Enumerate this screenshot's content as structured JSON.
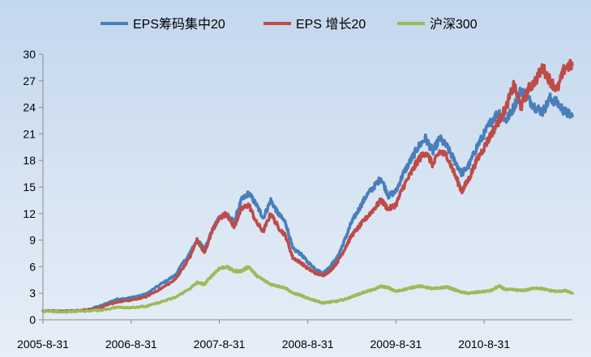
{
  "chart_data": {
    "type": "line",
    "title": "",
    "xlabel": "",
    "ylabel": "",
    "ylim": [
      0,
      30
    ],
    "yticks": [
      0,
      3,
      6,
      9,
      12,
      15,
      18,
      21,
      24,
      27,
      30
    ],
    "x_tick_labels": [
      "2005-8-31",
      "2006-8-31",
      "2007-8-31",
      "2008-8-31",
      "2009-8-31",
      "2010-8-31"
    ],
    "x_start": "2005-8-31",
    "x_end": "2011-8-31",
    "legend_position": "top",
    "grid": false,
    "series": [
      {
        "name": "EPS筹码集中20",
        "color": "#4a7ebb",
        "points": [
          [
            "2005-08-31",
            1.0
          ],
          [
            "2005-11-30",
            0.95
          ],
          [
            "2006-02-28",
            1.1
          ],
          [
            "2006-04-30",
            1.6
          ],
          [
            "2006-06-30",
            2.3
          ],
          [
            "2006-08-31",
            2.5
          ],
          [
            "2006-10-31",
            2.9
          ],
          [
            "2006-12-31",
            4.0
          ],
          [
            "2007-02-28",
            5.0
          ],
          [
            "2007-04-30",
            7.5
          ],
          [
            "2007-05-31",
            9.0
          ],
          [
            "2007-06-30",
            8.0
          ],
          [
            "2007-07-31",
            10.0
          ],
          [
            "2007-08-31",
            11.5
          ],
          [
            "2007-09-30",
            12.0
          ],
          [
            "2007-10-31",
            11.0
          ],
          [
            "2007-11-30",
            13.5
          ],
          [
            "2007-12-31",
            14.3
          ],
          [
            "2008-01-31",
            13.0
          ],
          [
            "2008-02-29",
            11.5
          ],
          [
            "2008-03-31",
            13.5
          ],
          [
            "2008-04-30",
            12.0
          ],
          [
            "2008-05-31",
            11.0
          ],
          [
            "2008-06-30",
            8.0
          ],
          [
            "2008-07-31",
            7.5
          ],
          [
            "2008-08-31",
            6.5
          ],
          [
            "2008-09-30",
            5.8
          ],
          [
            "2008-10-31",
            5.2
          ],
          [
            "2008-11-30",
            6.0
          ],
          [
            "2008-12-31",
            7.0
          ],
          [
            "2009-01-31",
            9.0
          ],
          [
            "2009-02-28",
            11.0
          ],
          [
            "2009-03-31",
            12.5
          ],
          [
            "2009-04-30",
            14.0
          ],
          [
            "2009-05-31",
            15.0
          ],
          [
            "2009-06-30",
            16.0
          ],
          [
            "2009-07-31",
            14.0
          ],
          [
            "2009-08-31",
            14.5
          ],
          [
            "2009-09-30",
            16.5
          ],
          [
            "2009-10-31",
            18.0
          ],
          [
            "2009-11-30",
            19.5
          ],
          [
            "2009-12-31",
            20.5
          ],
          [
            "2010-01-31",
            19.0
          ],
          [
            "2010-02-28",
            20.5
          ],
          [
            "2010-03-31",
            19.5
          ],
          [
            "2010-04-30",
            18.0
          ],
          [
            "2010-05-31",
            16.5
          ],
          [
            "2010-06-30",
            17.5
          ],
          [
            "2010-07-31",
            19.5
          ],
          [
            "2010-08-31",
            21.0
          ],
          [
            "2010-09-30",
            22.5
          ],
          [
            "2010-10-31",
            23.5
          ],
          [
            "2010-11-30",
            22.5
          ],
          [
            "2010-12-31",
            24.0
          ],
          [
            "2011-01-31",
            26.0
          ],
          [
            "2011-02-28",
            25.0
          ],
          [
            "2011-03-31",
            24.0
          ],
          [
            "2011-04-30",
            23.5
          ],
          [
            "2011-05-31",
            25.0
          ],
          [
            "2011-06-30",
            24.5
          ],
          [
            "2011-07-31",
            23.5
          ],
          [
            "2011-08-31",
            23.0
          ]
        ]
      },
      {
        "name": "EPS 增长20",
        "color": "#be4b48",
        "points": [
          [
            "2005-08-31",
            1.0
          ],
          [
            "2005-11-30",
            0.95
          ],
          [
            "2006-02-28",
            1.1
          ],
          [
            "2006-04-30",
            1.4
          ],
          [
            "2006-06-30",
            2.0
          ],
          [
            "2006-08-31",
            2.2
          ],
          [
            "2006-10-31",
            2.6
          ],
          [
            "2006-12-31",
            3.5
          ],
          [
            "2007-02-28",
            4.5
          ],
          [
            "2007-04-30",
            7.0
          ],
          [
            "2007-05-31",
            9.0
          ],
          [
            "2007-06-30",
            7.5
          ],
          [
            "2007-07-31",
            10.0
          ],
          [
            "2007-08-31",
            11.5
          ],
          [
            "2007-09-30",
            12.0
          ],
          [
            "2007-10-31",
            10.5
          ],
          [
            "2007-11-30",
            12.5
          ],
          [
            "2007-12-31",
            13.0
          ],
          [
            "2008-01-31",
            11.0
          ],
          [
            "2008-02-29",
            10.0
          ],
          [
            "2008-03-31",
            12.0
          ],
          [
            "2008-04-30",
            10.5
          ],
          [
            "2008-05-31",
            9.5
          ],
          [
            "2008-06-30",
            7.0
          ],
          [
            "2008-07-31",
            6.5
          ],
          [
            "2008-08-31",
            5.8
          ],
          [
            "2008-09-30",
            5.3
          ],
          [
            "2008-10-31",
            5.0
          ],
          [
            "2008-11-30",
            5.5
          ],
          [
            "2008-12-31",
            6.5
          ],
          [
            "2009-01-31",
            8.0
          ],
          [
            "2009-02-28",
            9.5
          ],
          [
            "2009-03-31",
            10.5
          ],
          [
            "2009-04-30",
            11.5
          ],
          [
            "2009-05-31",
            12.5
          ],
          [
            "2009-06-30",
            13.5
          ],
          [
            "2009-07-31",
            12.5
          ],
          [
            "2009-08-31",
            13.0
          ],
          [
            "2009-09-30",
            15.0
          ],
          [
            "2009-10-31",
            16.5
          ],
          [
            "2009-11-30",
            18.0
          ],
          [
            "2009-12-31",
            19.0
          ],
          [
            "2010-01-31",
            17.5
          ],
          [
            "2010-02-28",
            19.0
          ],
          [
            "2010-03-31",
            18.5
          ],
          [
            "2010-04-30",
            16.5
          ],
          [
            "2010-05-31",
            14.5
          ],
          [
            "2010-06-30",
            16.0
          ],
          [
            "2010-07-31",
            18.0
          ],
          [
            "2010-08-31",
            19.5
          ],
          [
            "2010-09-30",
            21.0
          ],
          [
            "2010-10-31",
            22.5
          ],
          [
            "2010-11-30",
            24.0
          ],
          [
            "2010-12-31",
            26.5
          ],
          [
            "2011-01-31",
            24.0
          ],
          [
            "2011-02-28",
            26.0
          ],
          [
            "2011-03-31",
            27.0
          ],
          [
            "2011-04-30",
            28.5
          ],
          [
            "2011-05-31",
            27.0
          ],
          [
            "2011-06-30",
            26.0
          ],
          [
            "2011-07-31",
            28.5
          ],
          [
            "2011-08-31",
            28.8
          ]
        ]
      },
      {
        "name": "沪深300",
        "color": "#9bbb59",
        "points": [
          [
            "2005-08-31",
            1.0
          ],
          [
            "2005-11-30",
            0.9
          ],
          [
            "2006-02-28",
            1.0
          ],
          [
            "2006-04-30",
            1.1
          ],
          [
            "2006-06-30",
            1.4
          ],
          [
            "2006-08-31",
            1.4
          ],
          [
            "2006-10-31",
            1.5
          ],
          [
            "2006-12-31",
            2.0
          ],
          [
            "2007-02-28",
            2.5
          ],
          [
            "2007-04-30",
            3.5
          ],
          [
            "2007-05-31",
            4.2
          ],
          [
            "2007-06-30",
            4.0
          ],
          [
            "2007-07-31",
            5.0
          ],
          [
            "2007-08-31",
            5.8
          ],
          [
            "2007-09-30",
            6.0
          ],
          [
            "2007-10-31",
            5.5
          ],
          [
            "2007-11-30",
            5.5
          ],
          [
            "2007-12-31",
            6.0
          ],
          [
            "2008-01-31",
            5.0
          ],
          [
            "2008-02-29",
            4.5
          ],
          [
            "2008-03-31",
            4.0
          ],
          [
            "2008-04-30",
            3.8
          ],
          [
            "2008-05-31",
            3.6
          ],
          [
            "2008-06-30",
            3.0
          ],
          [
            "2008-07-31",
            2.8
          ],
          [
            "2008-08-31",
            2.4
          ],
          [
            "2008-09-30",
            2.2
          ],
          [
            "2008-10-31",
            1.9
          ],
          [
            "2008-11-30",
            2.0
          ],
          [
            "2008-12-31",
            2.1
          ],
          [
            "2009-01-31",
            2.3
          ],
          [
            "2009-02-28",
            2.6
          ],
          [
            "2009-03-31",
            2.9
          ],
          [
            "2009-04-30",
            3.2
          ],
          [
            "2009-05-31",
            3.4
          ],
          [
            "2009-06-30",
            3.8
          ],
          [
            "2009-07-31",
            3.6
          ],
          [
            "2009-08-31",
            3.2
          ],
          [
            "2009-09-30",
            3.4
          ],
          [
            "2009-10-31",
            3.6
          ],
          [
            "2009-11-30",
            3.8
          ],
          [
            "2009-12-31",
            3.7
          ],
          [
            "2010-01-31",
            3.5
          ],
          [
            "2010-02-28",
            3.6
          ],
          [
            "2010-03-31",
            3.7
          ],
          [
            "2010-04-30",
            3.4
          ],
          [
            "2010-05-31",
            3.1
          ],
          [
            "2010-06-30",
            3.0
          ],
          [
            "2010-07-31",
            3.1
          ],
          [
            "2010-08-31",
            3.2
          ],
          [
            "2010-09-30",
            3.3
          ],
          [
            "2010-10-31",
            3.8
          ],
          [
            "2010-11-30",
            3.4
          ],
          [
            "2010-12-31",
            3.4
          ],
          [
            "2011-01-31",
            3.3
          ],
          [
            "2011-02-28",
            3.4
          ],
          [
            "2011-03-31",
            3.6
          ],
          [
            "2011-04-30",
            3.5
          ],
          [
            "2011-05-31",
            3.3
          ],
          [
            "2011-06-30",
            3.2
          ],
          [
            "2011-07-31",
            3.3
          ],
          [
            "2011-08-31",
            3.0
          ]
        ]
      }
    ]
  }
}
